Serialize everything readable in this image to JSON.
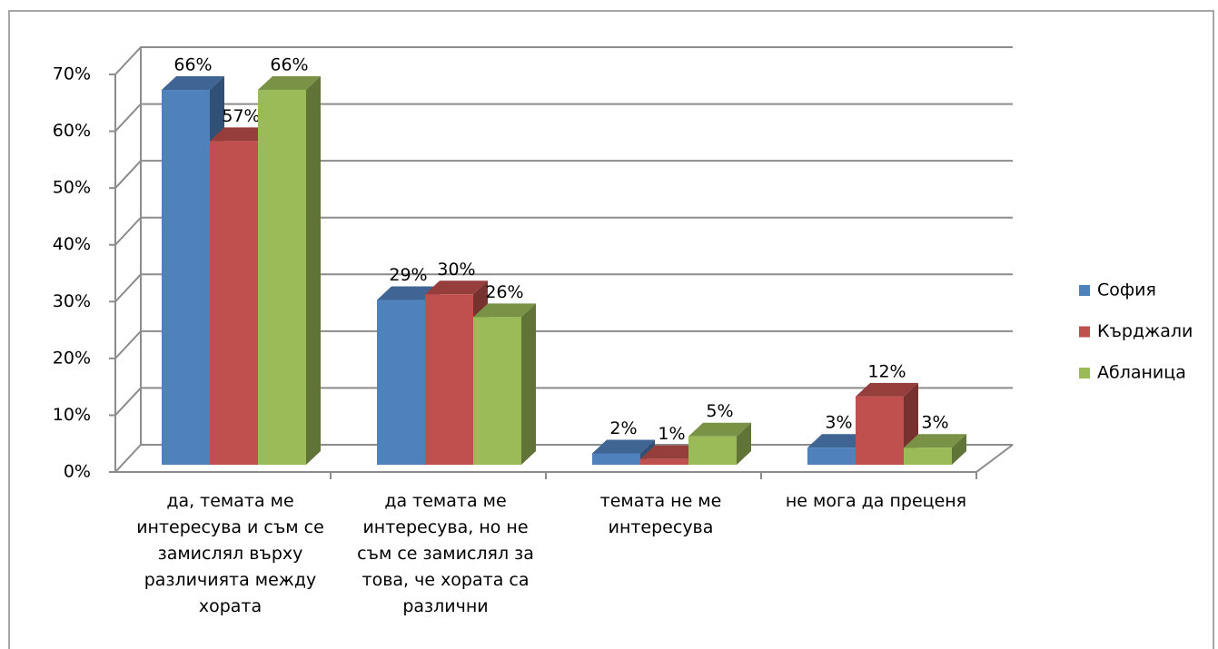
{
  "chart_data": {
    "type": "bar3d",
    "categories": [
      "да, темата ме интересува и съм се замислял върху различията между хората",
      "да темата ме интересува, но не съм се замислял за това, че хората са различни",
      "темата не ме интересува",
      "не мога да преценя"
    ],
    "series": [
      {
        "name": "София",
        "color": "#4f81bd",
        "values": [
          66,
          29,
          2,
          3
        ],
        "value_labels": [
          "66%",
          "29%",
          "2%",
          "3%"
        ]
      },
      {
        "name": "Кърджали",
        "color": "#c0504d",
        "values": [
          57,
          30,
          1,
          12
        ],
        "value_labels": [
          "57%",
          "30%",
          "1%",
          "12%"
        ]
      },
      {
        "name": "Абланица",
        "color": "#9bbb59",
        "values": [
          66,
          26,
          5,
          3
        ],
        "value_labels": [
          "66%",
          "26%",
          "5%",
          "3%"
        ]
      }
    ],
    "ylim": [
      0,
      70
    ],
    "yticks": [
      {
        "value": 0,
        "label": "0%"
      },
      {
        "value": 10,
        "label": "10%"
      },
      {
        "value": 20,
        "label": "20%"
      },
      {
        "value": 30,
        "label": "30%"
      },
      {
        "value": 40,
        "label": "40%"
      },
      {
        "value": 50,
        "label": "50%"
      },
      {
        "value": 60,
        "label": "60%"
      },
      {
        "value": 70,
        "label": "70%"
      }
    ],
    "grid": true,
    "legend": "right"
  }
}
